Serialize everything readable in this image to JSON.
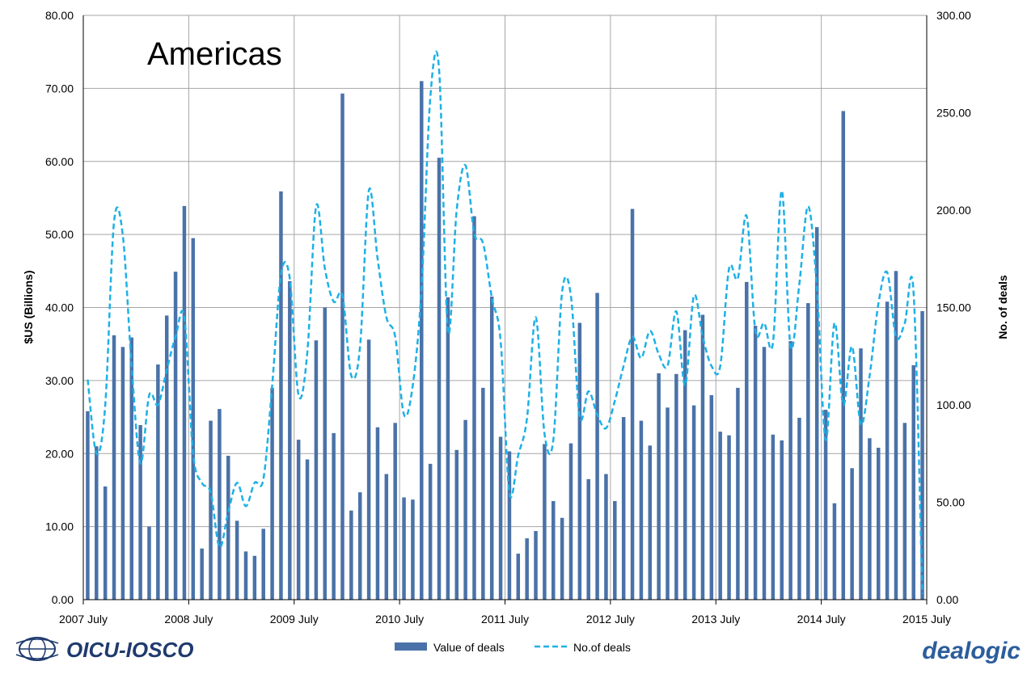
{
  "colors": {
    "bar": "#4a72a8",
    "line": "#1eb0e6",
    "grid": "#a6a6a6",
    "oicu": "#1f3a6e",
    "dealogic": "#2c5d9c"
  },
  "logos": {
    "left": "OICU-IOSCO",
    "right": "dealogic"
  },
  "chart_data": {
    "type": "bar",
    "title": "Americas",
    "ylabel": "$US (Billions)",
    "y2label": "No. of deals",
    "ylim": [
      0,
      80
    ],
    "y2lim": [
      0,
      300
    ],
    "yticks": [
      "0.00",
      "10.00",
      "20.00",
      "30.00",
      "40.00",
      "50.00",
      "60.00",
      "70.00",
      "80.00"
    ],
    "y2ticks": [
      "0.00",
      "50.00",
      "100.00",
      "150.00",
      "200.00",
      "250.00",
      "300.00"
    ],
    "xticks": [
      "2007 July",
      "2008 July",
      "2009 July",
      "2010 July",
      "2011 July",
      "2012 July",
      "2013 July",
      "2014 July",
      "2015 July"
    ],
    "grid": true,
    "legend_position": "bottom",
    "x_start": "2007-07",
    "series": [
      {
        "name": "Value of deals",
        "kind": "bar",
        "axis": "left",
        "values": [
          25.8,
          21.0,
          15.5,
          36.2,
          34.6,
          35.9,
          23.9,
          10.0,
          32.2,
          38.9,
          44.9,
          53.9,
          49.5,
          7.0,
          24.5,
          26.1,
          19.7,
          10.8,
          6.6,
          6.0,
          9.7,
          29.0,
          55.9,
          43.6,
          21.9,
          19.2,
          35.5,
          40.0,
          22.8,
          69.3,
          12.2,
          14.7,
          35.6,
          23.6,
          17.2,
          24.2,
          14.0,
          13.7,
          71.0,
          18.6,
          60.5,
          41.4,
          20.5,
          24.6,
          52.5,
          29.0,
          41.5,
          22.3,
          20.3,
          6.3,
          8.4,
          9.4,
          21.3,
          13.5,
          11.2,
          21.4,
          37.9,
          16.5,
          42.0,
          17.2,
          13.5,
          25.0,
          53.5,
          24.5,
          21.1,
          31.0,
          26.3,
          30.9,
          36.9,
          26.6,
          39.0,
          28.0,
          23.0,
          22.5,
          29.0,
          43.5,
          37.5,
          34.6,
          22.6,
          21.8,
          35.4,
          24.9,
          40.6,
          51.0,
          26.0,
          13.2,
          66.9,
          18.0,
          34.4,
          22.1,
          20.8,
          40.8,
          45.0,
          24.2,
          32.1,
          39.5
        ]
      },
      {
        "name": "No.of deals",
        "kind": "line",
        "axis": "right",
        "style": "dashed",
        "values": [
          113,
          75,
          100,
          194,
          187,
          120,
          70,
          105,
          100,
          118,
          135,
          145,
          75,
          60,
          55,
          27,
          45,
          60,
          48,
          60,
          62,
          110,
          167,
          165,
          105,
          127,
          202,
          170,
          153,
          156,
          115,
          130,
          210,
          175,
          145,
          135,
          95,
          110,
          160,
          258,
          272,
          138,
          200,
          223,
          188,
          183,
          155,
          133,
          55,
          74,
          93,
          145,
          85,
          82,
          158,
          156,
          94,
          107,
          95,
          88,
          102,
          120,
          135,
          124,
          138,
          126,
          120,
          148,
          110,
          156,
          135,
          120,
          120,
          170,
          165,
          197,
          138,
          142,
          132,
          210,
          130,
          162,
          202,
          160,
          82,
          142,
          100,
          130,
          90,
          115,
          152,
          168,
          135,
          142,
          158,
          3
        ]
      }
    ]
  }
}
